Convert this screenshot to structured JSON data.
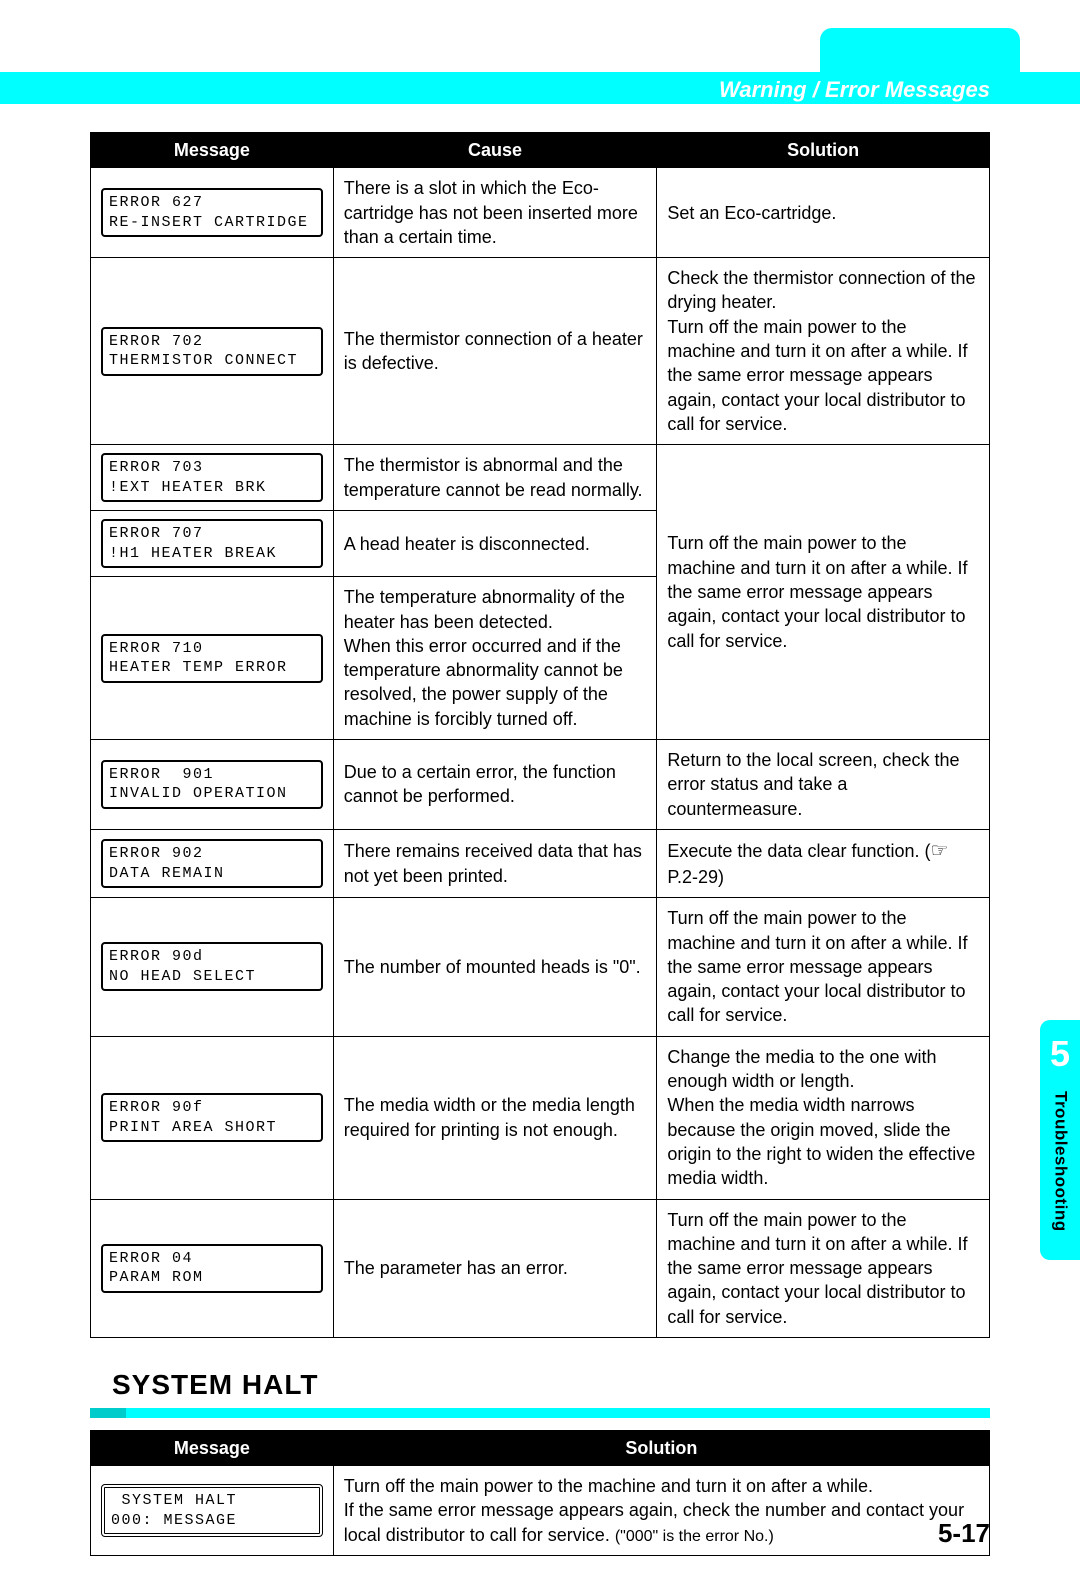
{
  "header": {
    "title": "Warning / Error Messages"
  },
  "error_table": {
    "headers": {
      "message": "Message",
      "cause": "Cause",
      "solution": "Solution"
    },
    "rows": [
      {
        "code": "ERROR 627\nRE-INSERT CARTRIDGE",
        "cause": "There is a slot in which the Eco-cartridge has not been inserted more than a certain time.",
        "solution": "Set an Eco-cartridge."
      },
      {
        "code": "ERROR 702\nTHERMISTOR CONNECT",
        "cause": "The thermistor connection of a heater is defective.",
        "solution": "Check the thermistor connection of the drying heater.\nTurn off the main power to the machine and turn it on after a while. If the same error message appears again, contact your local distributor to call for service."
      },
      {
        "code": "ERROR 703\n!EXT HEATER BRK",
        "cause": "The thermistor is abnormal and the temperature cannot be read normally."
      },
      {
        "code": "ERROR 707\n!H1 HEATER BREAK",
        "cause": "A head heater is disconnected."
      },
      {
        "code": "ERROR 710\nHEATER TEMP ERROR",
        "cause": "The temperature abnormality of the heater has been detected.\nWhen this error occurred and if the temperature abnormality cannot be resolved, the power supply of the machine is forcibly turned off."
      },
      {
        "solution_merged": "Turn off the main power to the machine and turn it on after a while. If the same error message appears again, contact your local distributor to call for service."
      },
      {
        "code": "ERROR  901\nINVALID OPERATION",
        "cause": "Due to a certain error, the function cannot be performed.",
        "solution": "Return to the local screen, check the error status and take a countermeasure."
      },
      {
        "code": "ERROR 902\nDATA REMAIN",
        "cause": "There remains received data that has not yet been printed.",
        "solution_pre": "Execute the data clear function. (",
        "solution_ref": " P.2-29)"
      },
      {
        "code": "ERROR 90d\nNO HEAD SELECT",
        "cause": "The number of mounted heads is \"0\".",
        "solution": "Turn off the main power to the machine and turn it on after a while. If the same error message appears again, contact your local distributor to call for service."
      },
      {
        "code": "ERROR 90f\nPRINT AREA SHORT",
        "cause": "The media width or the media length required for printing is not enough.",
        "solution": "Change the media to the one with enough width or length.\nWhen the media width narrows because the origin moved, slide the origin to the right to widen the effective media width."
      },
      {
        "code": "ERROR 04\nPARAM ROM",
        "cause": "The parameter has an error.",
        "solution": "Turn off the main power to the machine and turn it on after a while. If the same error message appears again, contact your local distributor to call for service."
      }
    ]
  },
  "section": {
    "title": "SYSTEM HALT"
  },
  "halt_table": {
    "headers": {
      "message": "Message",
      "solution": "Solution"
    },
    "row": {
      "code": " SYSTEM HALT\n000: MESSAGE",
      "solution_main": "Turn off the main power to the machine and turn it on after a while.\nIf the same error message appears again, check the number and contact your local distributor to call for service. ",
      "solution_note": "(\"000\" is the error No.)"
    }
  },
  "side": {
    "chapter": "5",
    "label": "Troubleshooting"
  },
  "page": "5-17"
}
